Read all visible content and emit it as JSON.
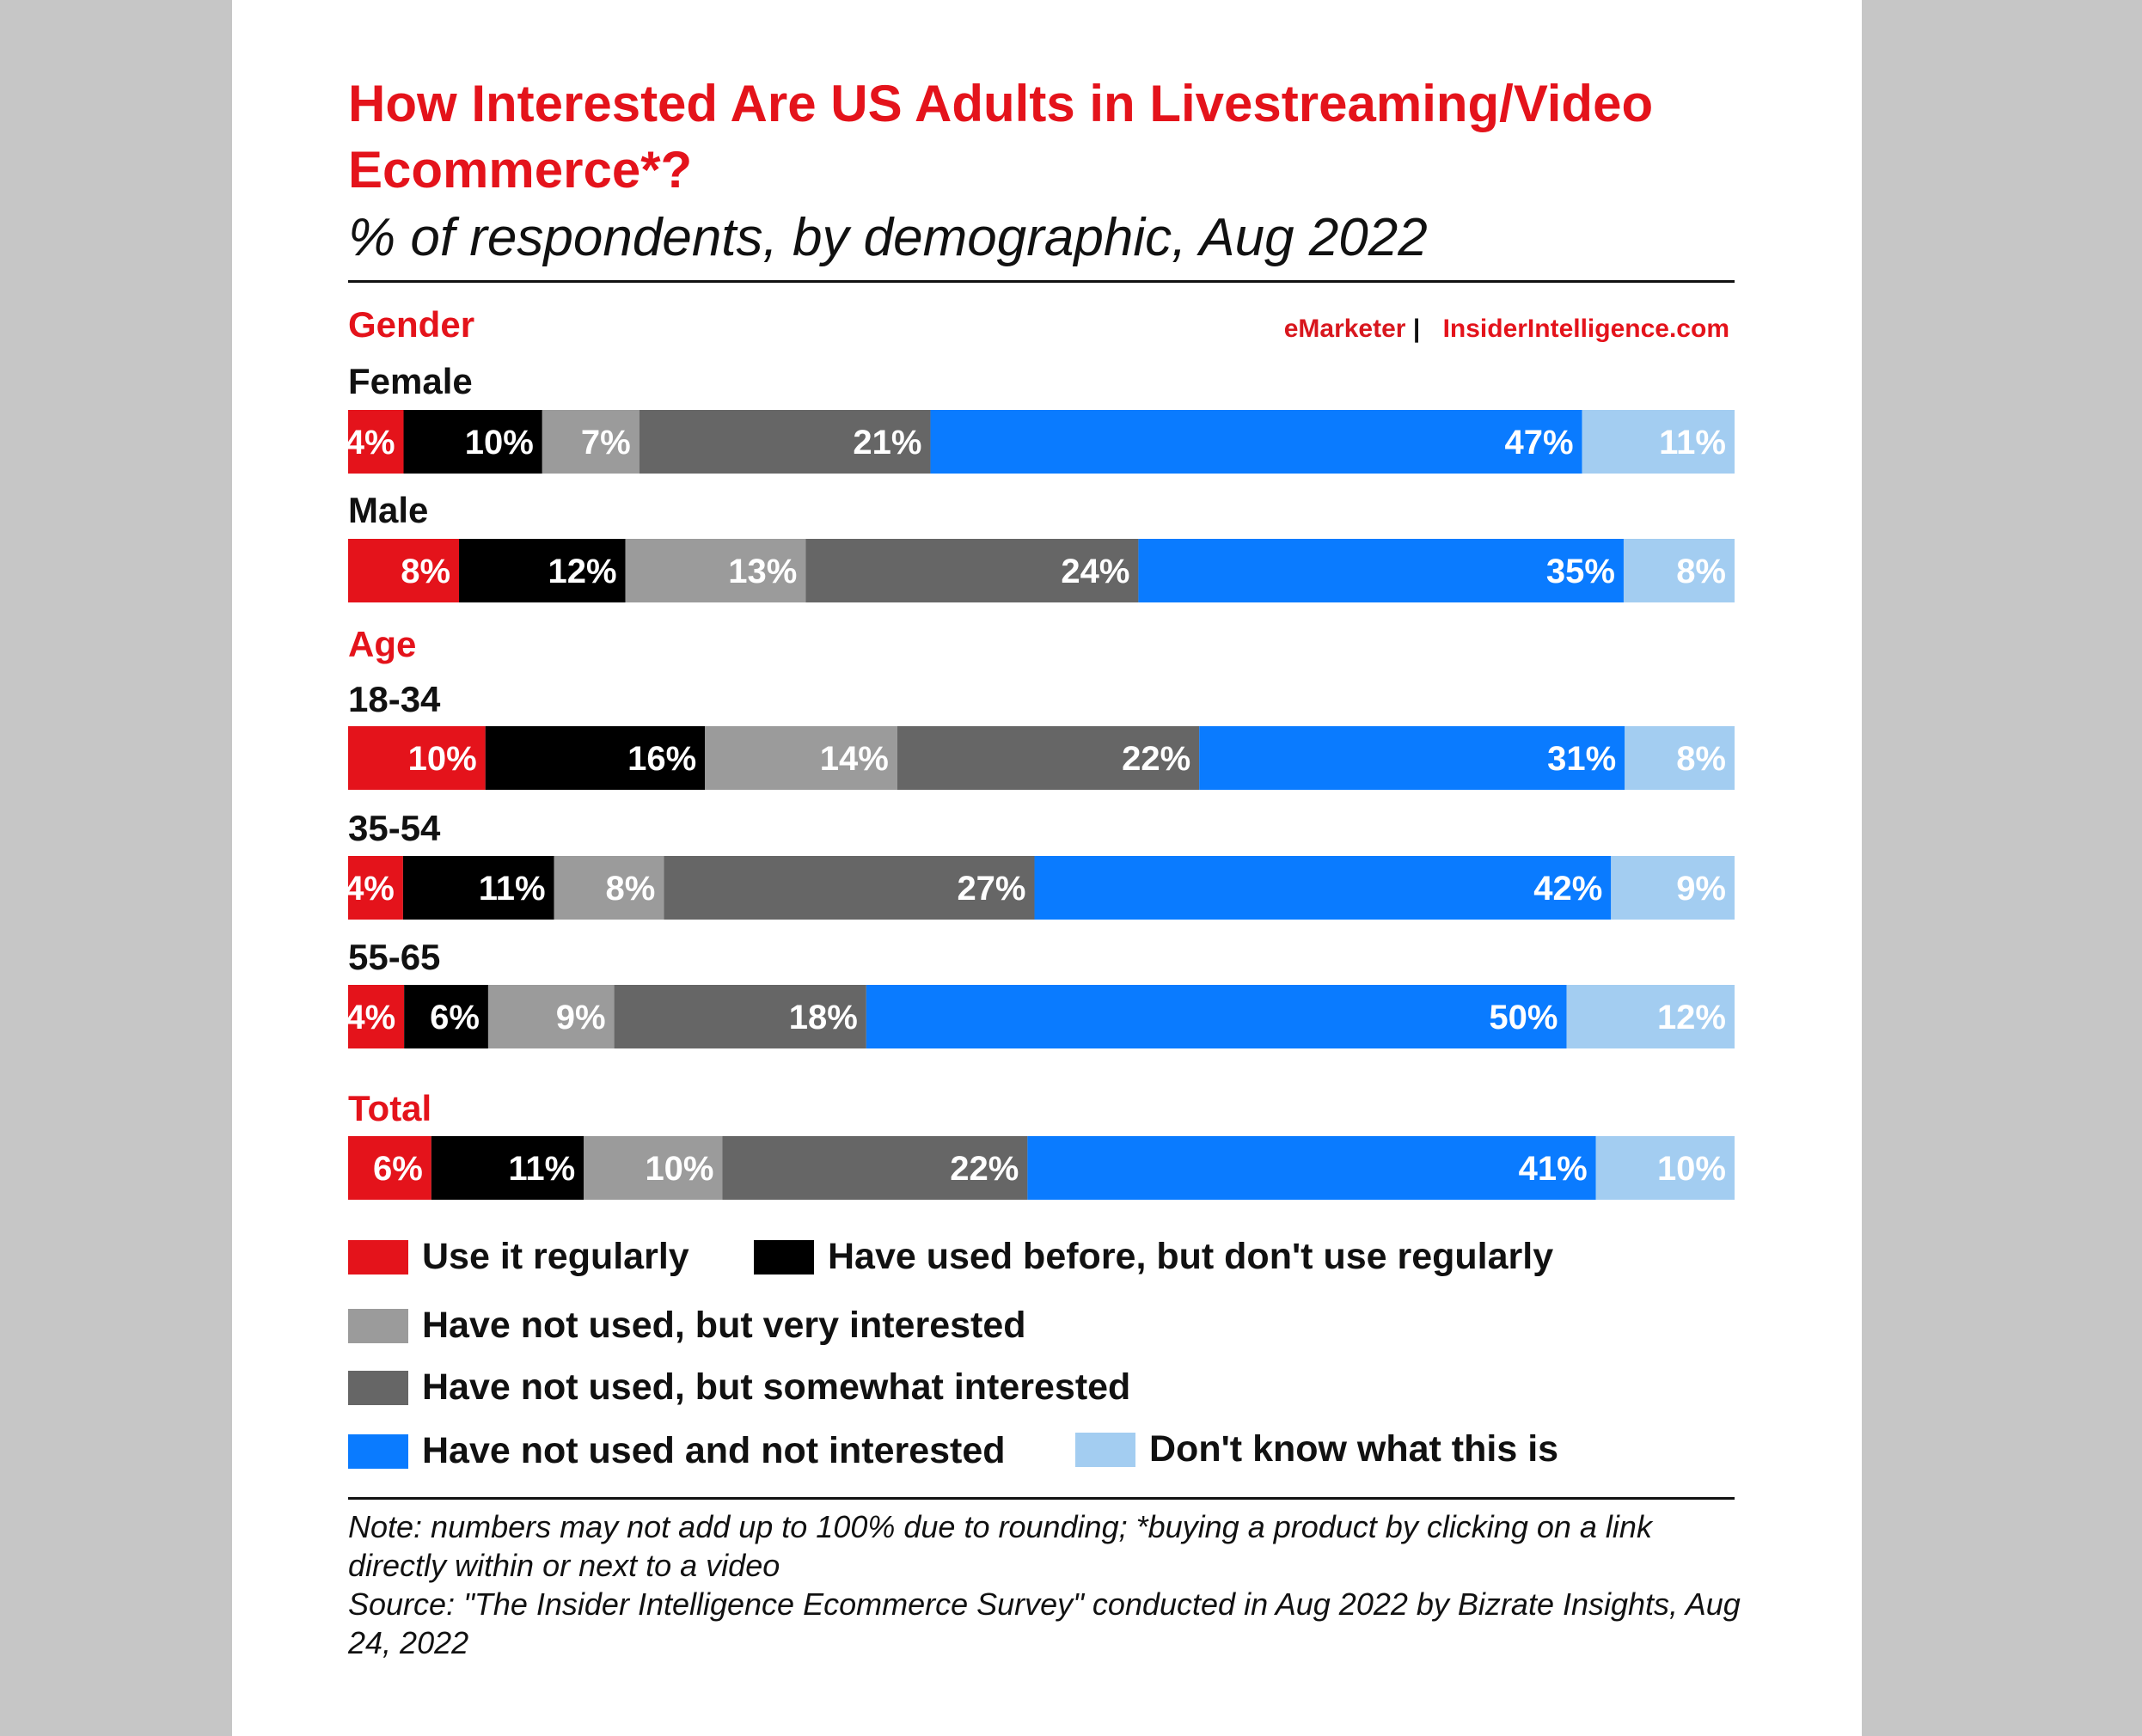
{
  "header": {
    "title": "How Interested Are US Adults in Livestreaming/Video Ecommerce*?",
    "subtitle": "% of respondents, by demographic, Aug 2022",
    "brand_left": "eMarketer",
    "brand_sep": "|",
    "brand_right": "InsiderIntelligence.com"
  },
  "colors": {
    "use_regularly": "#e4131b",
    "used_before": "#000000",
    "very_interested": "#9b9b9b",
    "somewhat_interested": "#666666",
    "not_interested": "#0a7bff",
    "dont_know": "#a3cdf1"
  },
  "chart_data": {
    "type": "bar",
    "orientation": "horizontal",
    "stacked": true,
    "normalized": true,
    "title": "How Interested Are US Adults in Livestreaming/Video Ecommerce*?",
    "subtitle": "% of respondents, by demographic, Aug 2022",
    "groups": [
      "Gender",
      "Age",
      "Total"
    ],
    "categories": [
      "Female",
      "Male",
      "18-34",
      "35-54",
      "55-65",
      "Total"
    ],
    "category_groups": [
      "Gender",
      "Gender",
      "Age",
      "Age",
      "Age",
      "Total"
    ],
    "series": [
      {
        "name": "Use it regularly",
        "color_key": "use_regularly",
        "values": [
          4,
          8,
          10,
          4,
          4,
          6
        ]
      },
      {
        "name": "Have used before, but don't use regularly",
        "color_key": "used_before",
        "values": [
          10,
          12,
          16,
          11,
          6,
          11
        ]
      },
      {
        "name": "Have not used, but very interested",
        "color_key": "very_interested",
        "values": [
          7,
          13,
          14,
          8,
          9,
          10
        ]
      },
      {
        "name": "Have not used, but somewhat interested",
        "color_key": "somewhat_interested",
        "values": [
          21,
          24,
          22,
          27,
          18,
          22
        ]
      },
      {
        "name": "Have not used and not interested",
        "color_key": "not_interested",
        "values": [
          47,
          35,
          31,
          42,
          50,
          41
        ]
      },
      {
        "name": "Don't know what this is",
        "color_key": "dont_know",
        "values": [
          11,
          8,
          8,
          9,
          12,
          10
        ]
      }
    ],
    "value_suffix": "%",
    "legend_position": "bottom"
  },
  "notes": {
    "note": "Note: numbers may not add up to 100% due to rounding; *buying a product by clicking on a link directly within or next to a video",
    "source": "Source: \"The Insider Intelligence Ecommerce Survey\" conducted in Aug 2022 by Bizrate Insights, Aug 24, 2022"
  }
}
